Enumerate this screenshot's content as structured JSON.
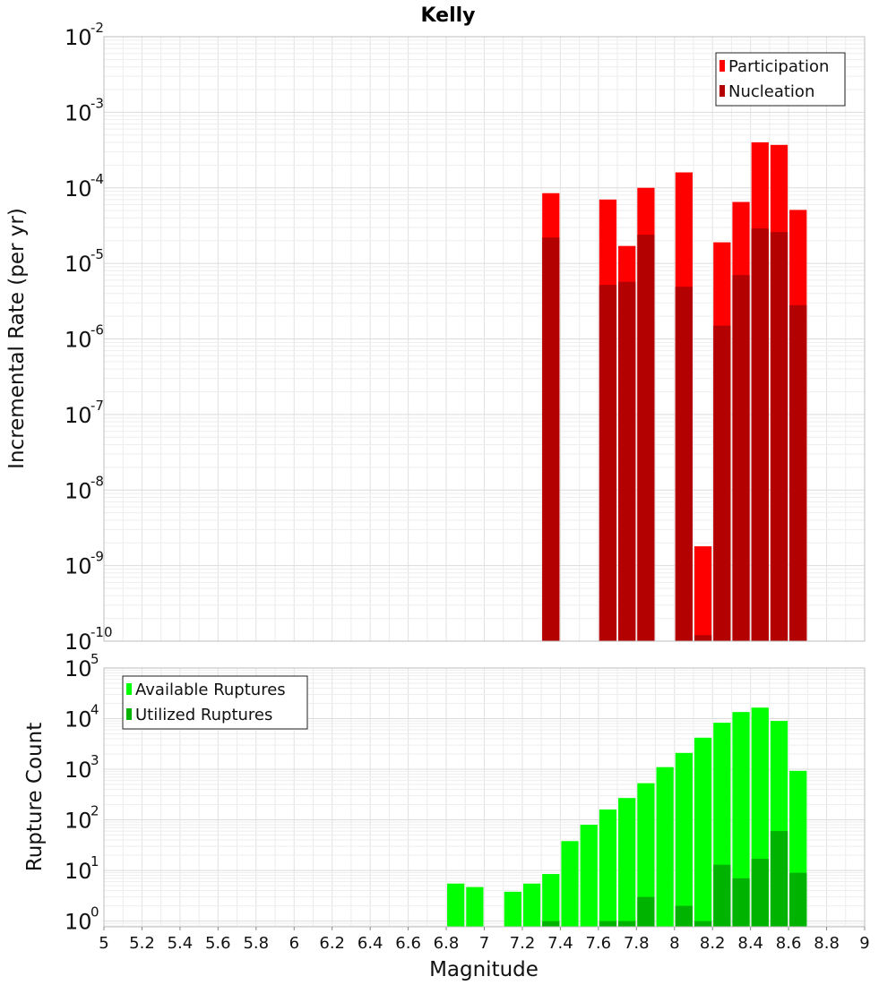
{
  "chart_data": [
    {
      "type": "bar",
      "title": "Kelly",
      "xlabel": "",
      "ylabel": "Incremental Rate (per yr)",
      "y_scale": "log",
      "ylim": [
        1e-10,
        0.01
      ],
      "xlim": [
        5,
        9
      ],
      "y_ticks": [
        {
          "base": "10",
          "exp": "-10"
        },
        {
          "base": "10",
          "exp": "-9"
        },
        {
          "base": "10",
          "exp": "-8"
        },
        {
          "base": "10",
          "exp": "-7"
        },
        {
          "base": "10",
          "exp": "-6"
        },
        {
          "base": "10",
          "exp": "-5"
        },
        {
          "base": "10",
          "exp": "-4"
        },
        {
          "base": "10",
          "exp": "-3"
        },
        {
          "base": "10",
          "exp": "-2"
        }
      ],
      "grid": true,
      "legend_position": "top-right",
      "series": [
        {
          "name": "Participation",
          "color": "#ff0000",
          "x": [
            7.35,
            7.65,
            7.75,
            7.85,
            8.05,
            8.15,
            8.25,
            8.35,
            8.45,
            8.55,
            8.65
          ],
          "values": [
            8.5e-05,
            7e-05,
            1.7e-05,
            0.0001,
            0.00016,
            1.8e-09,
            1.9e-05,
            6.5e-05,
            0.0004,
            0.00037,
            5.1e-05
          ]
        },
        {
          "name": "Nucleation",
          "color": "#b30000",
          "x": [
            7.35,
            7.65,
            7.75,
            7.85,
            8.05,
            8.15,
            8.25,
            8.35,
            8.45,
            8.55,
            8.65
          ],
          "values": [
            2.2e-05,
            5.2e-06,
            5.7e-06,
            2.4e-05,
            4.9e-06,
            1.2e-10,
            1.5e-06,
            7e-06,
            2.9e-05,
            2.6e-05,
            2.8e-06
          ]
        }
      ]
    },
    {
      "type": "bar",
      "title": "",
      "xlabel": "Magnitude",
      "ylabel": "Rupture Count",
      "y_scale": "log",
      "ylim": [
        0.77,
        100000
      ],
      "xlim": [
        5,
        9
      ],
      "y_ticks": [
        {
          "base": "10",
          "exp": "0"
        },
        {
          "base": "10",
          "exp": "1"
        },
        {
          "base": "10",
          "exp": "2"
        },
        {
          "base": "10",
          "exp": "3"
        },
        {
          "base": "10",
          "exp": "4"
        },
        {
          "base": "10",
          "exp": "5"
        }
      ],
      "x_ticks": [
        "5",
        "5.2",
        "5.4",
        "5.6",
        "5.8",
        "6",
        "6.2",
        "6.4",
        "6.6",
        "6.8",
        "7",
        "7.2",
        "7.4",
        "7.6",
        "7.8",
        "8",
        "8.2",
        "8.4",
        "8.6",
        "8.8",
        "9"
      ],
      "grid": true,
      "legend_position": "top-left",
      "series": [
        {
          "name": "Available Ruptures",
          "color": "#00ff00",
          "x": [
            6.85,
            6.95,
            7.15,
            7.25,
            7.35,
            7.45,
            7.55,
            7.65,
            7.75,
            7.85,
            7.95,
            8.05,
            8.15,
            8.25,
            8.35,
            8.45,
            8.55,
            8.65
          ],
          "values": [
            5.5,
            4.7,
            3.8,
            5.5,
            8.5,
            38,
            80,
            160,
            270,
            530,
            1100,
            2100,
            4200,
            8300,
            13500,
            16500,
            9000,
            930
          ]
        },
        {
          "name": "Utilized Ruptures",
          "color": "#00b300",
          "x": [
            7.35,
            7.65,
            7.75,
            7.85,
            8.05,
            8.15,
            8.25,
            8.35,
            8.45,
            8.55,
            8.65
          ],
          "values": [
            1,
            1,
            1,
            3,
            2,
            1,
            13,
            7,
            17,
            60,
            9
          ]
        }
      ]
    }
  ]
}
